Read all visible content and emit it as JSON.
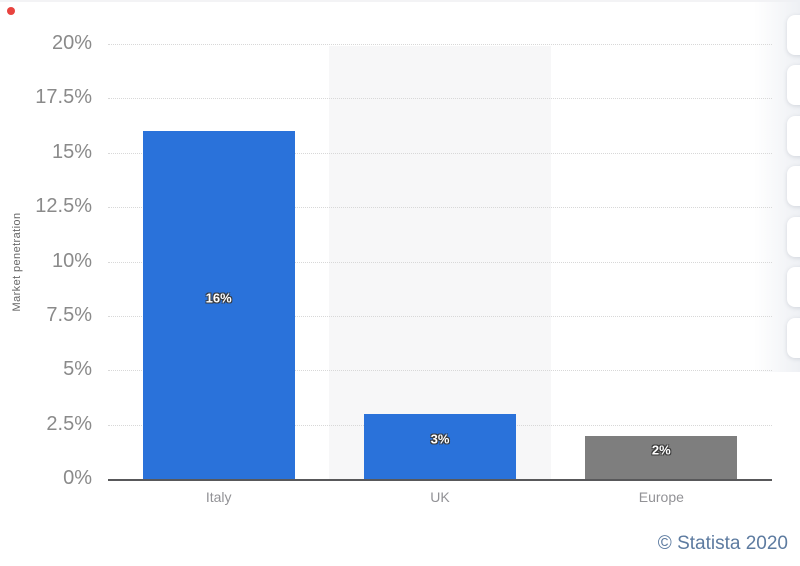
{
  "chart_data": {
    "type": "bar",
    "title": "",
    "xlabel": "",
    "ylabel": "Market penetration",
    "categories": [
      "Italy",
      "UK",
      "Europe"
    ],
    "values": [
      16,
      3,
      2
    ],
    "value_labels": [
      "16%",
      "3%",
      "2%"
    ],
    "bar_colors": [
      "#2a72da",
      "#2a72da",
      "#7e7e7e"
    ],
    "ylim": [
      0,
      20
    ],
    "yticks": [
      0,
      2.5,
      5,
      7.5,
      10,
      12.5,
      15,
      17.5,
      20
    ],
    "ytick_labels": [
      "0%",
      "2.5%",
      "5%",
      "7.5%",
      "10%",
      "12.5%",
      "15%",
      "17.5%",
      "20%"
    ],
    "grid": "horizontal dotted",
    "legend": "none",
    "highlighted_category": "UK"
  },
  "colors": {
    "bar_blue": "#2a72da",
    "bar_gray": "#7e7e7e",
    "highlight_band": "#f7f7f8",
    "credit_text": "#5d7ba0"
  },
  "footer": {
    "credit": "© Statista 2020"
  }
}
